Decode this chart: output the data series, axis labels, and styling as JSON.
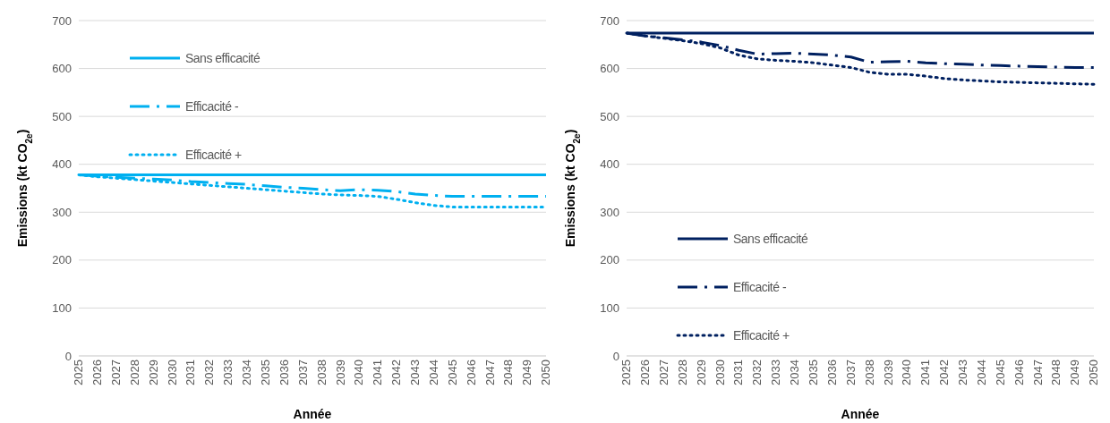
{
  "chart_data": [
    {
      "type": "line",
      "xlabel": "Année",
      "ylabel": "Emissions (kt CO$_{2e}$)",
      "categories": [
        "2025",
        "2026",
        "2027",
        "2028",
        "2029",
        "2030",
        "2031",
        "2032",
        "2033",
        "2034",
        "2035",
        "2036",
        "2037",
        "2038",
        "2039",
        "2040",
        "2041",
        "2042",
        "2043",
        "2044",
        "2045",
        "2046",
        "2047",
        "2048",
        "2049",
        "2050"
      ],
      "ylim": [
        0,
        700
      ],
      "yticks": [
        0,
        100,
        200,
        300,
        400,
        500,
        600,
        700
      ],
      "grid": "y",
      "legend": "top left",
      "series": [
        {
          "name": "Sans efficacité",
          "color": "#00b0f0",
          "line_style": "solid",
          "values": [
            378,
            378,
            378,
            378,
            378,
            378,
            378,
            378,
            378,
            378,
            378,
            378,
            378,
            378,
            378,
            378,
            378,
            378,
            378,
            378,
            378,
            378,
            378,
            378,
            378,
            378
          ]
        },
        {
          "name": "Efficacité -",
          "color": "#00b0f0",
          "line_style": "dashed",
          "values": [
            378,
            375,
            373,
            371,
            369,
            367,
            364,
            362,
            360,
            358,
            355,
            352,
            350,
            347,
            345,
            347,
            346,
            343,
            338,
            335,
            333,
            333,
            333,
            333,
            333,
            333
          ]
        },
        {
          "name": "Efficacité +",
          "color": "#00b0f0",
          "line_style": "dotted",
          "values": [
            378,
            374,
            371,
            368,
            365,
            362,
            359,
            356,
            353,
            350,
            347,
            344,
            341,
            338,
            336,
            335,
            333,
            327,
            320,
            314,
            311,
            311,
            311,
            311,
            311,
            311
          ]
        }
      ]
    },
    {
      "type": "line",
      "xlabel": "Année",
      "ylabel": "Emissions (kt CO$_{2e}$)",
      "categories": [
        "2025",
        "2026",
        "2027",
        "2028",
        "2029",
        "2030",
        "2031",
        "2032",
        "2033",
        "2034",
        "2035",
        "2036",
        "2037",
        "2038",
        "2039",
        "2040",
        "2041",
        "2042",
        "2043",
        "2044",
        "2045",
        "2046",
        "2047",
        "2048",
        "2049",
        "2050"
      ],
      "ylim": [
        0,
        700
      ],
      "yticks": [
        0,
        100,
        200,
        300,
        400,
        500,
        600,
        700
      ],
      "grid": "y",
      "legend": "bottom left",
      "series": [
        {
          "name": "Sans efficacité",
          "color": "#002060",
          "line_style": "solid",
          "values": [
            674,
            674,
            674,
            674,
            674,
            674,
            674,
            674,
            674,
            674,
            674,
            674,
            674,
            674,
            674,
            674,
            674,
            674,
            674,
            674,
            674,
            674,
            674,
            674,
            674,
            674
          ]
        },
        {
          "name": "Efficacité -",
          "color": "#002060",
          "line_style": "dashed",
          "values": [
            674,
            668,
            664,
            660,
            655,
            648,
            638,
            630,
            631,
            632,
            630,
            628,
            624,
            613,
            614,
            615,
            612,
            610,
            609,
            607,
            606,
            605,
            604,
            603,
            602,
            602
          ]
        },
        {
          "name": "Efficacité +",
          "color": "#002060",
          "line_style": "dotted",
          "values": [
            674,
            668,
            663,
            658,
            652,
            643,
            628,
            620,
            617,
            615,
            612,
            607,
            602,
            592,
            588,
            588,
            584,
            579,
            576,
            574,
            572,
            571,
            570,
            569,
            568,
            567
          ]
        }
      ]
    }
  ]
}
